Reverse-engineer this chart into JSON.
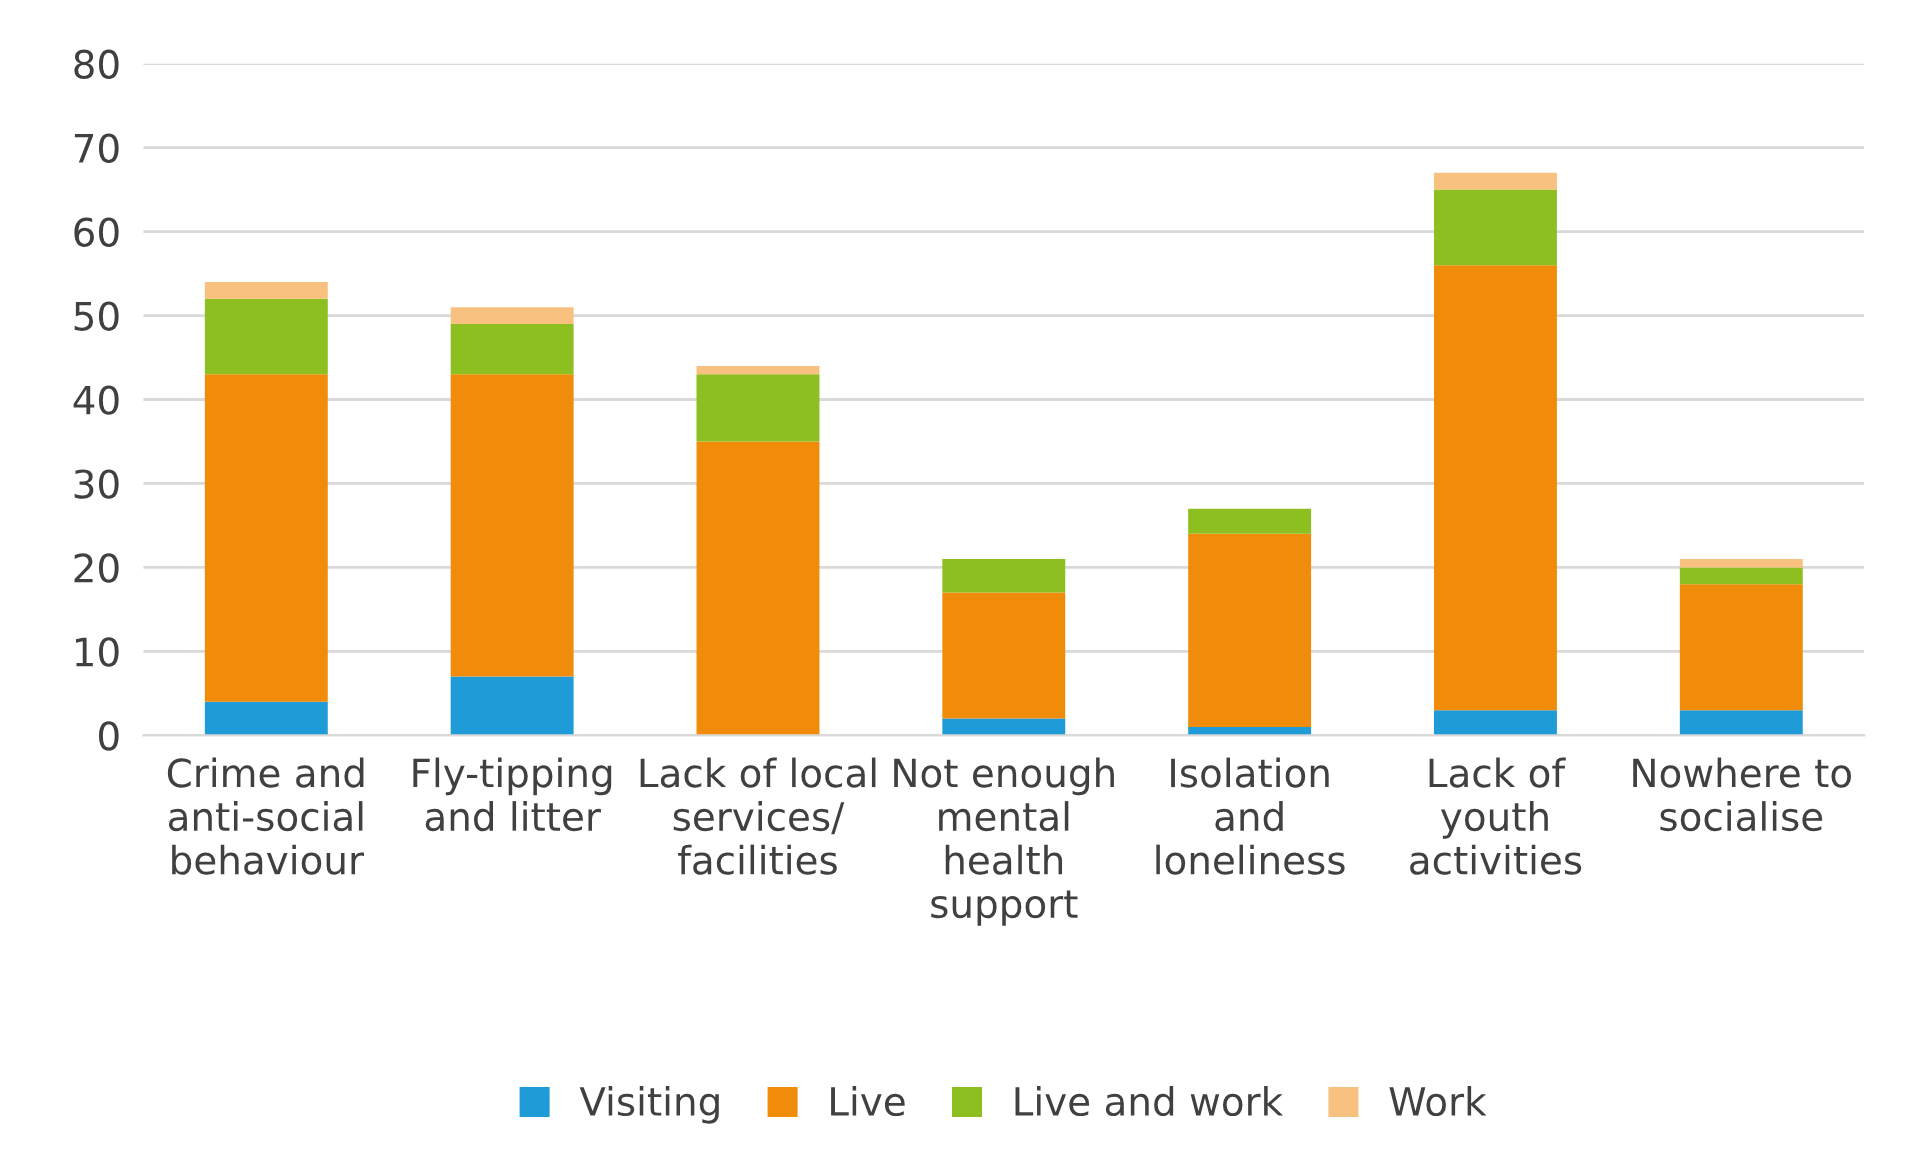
{
  "chart_data": {
    "type": "bar",
    "stacked": true,
    "categories": [
      "Crime and\nanti-social\nbehaviour",
      "Fly-tipping\nand litter",
      "Lack of local\nservices/\nfacilities",
      "Not enough\nmental\nhealth\nsupport",
      "Isolation\nand\nloneliness",
      "Lack of\nyouth\nactivities",
      "Nowhere to\nsocialise"
    ],
    "series": [
      {
        "name": "Visiting",
        "color": "#1f9bd7",
        "values": [
          4,
          7,
          0,
          2,
          1,
          3,
          3
        ]
      },
      {
        "name": "Live",
        "color": "#f08c0a",
        "values": [
          39,
          36,
          35,
          15,
          23,
          53,
          15
        ]
      },
      {
        "name": "Live and work",
        "color": "#8dbf21",
        "values": [
          9,
          6,
          8,
          4,
          3,
          9,
          2
        ]
      },
      {
        "name": "Work",
        "color": "#f9c17f",
        "values": [
          2,
          2,
          1,
          0,
          0,
          2,
          1
        ]
      }
    ],
    "ylim": [
      0,
      80
    ],
    "yticks": [
      0,
      10,
      20,
      30,
      40,
      50,
      60,
      70,
      80
    ],
    "grid": "y",
    "legend": "bottom"
  }
}
